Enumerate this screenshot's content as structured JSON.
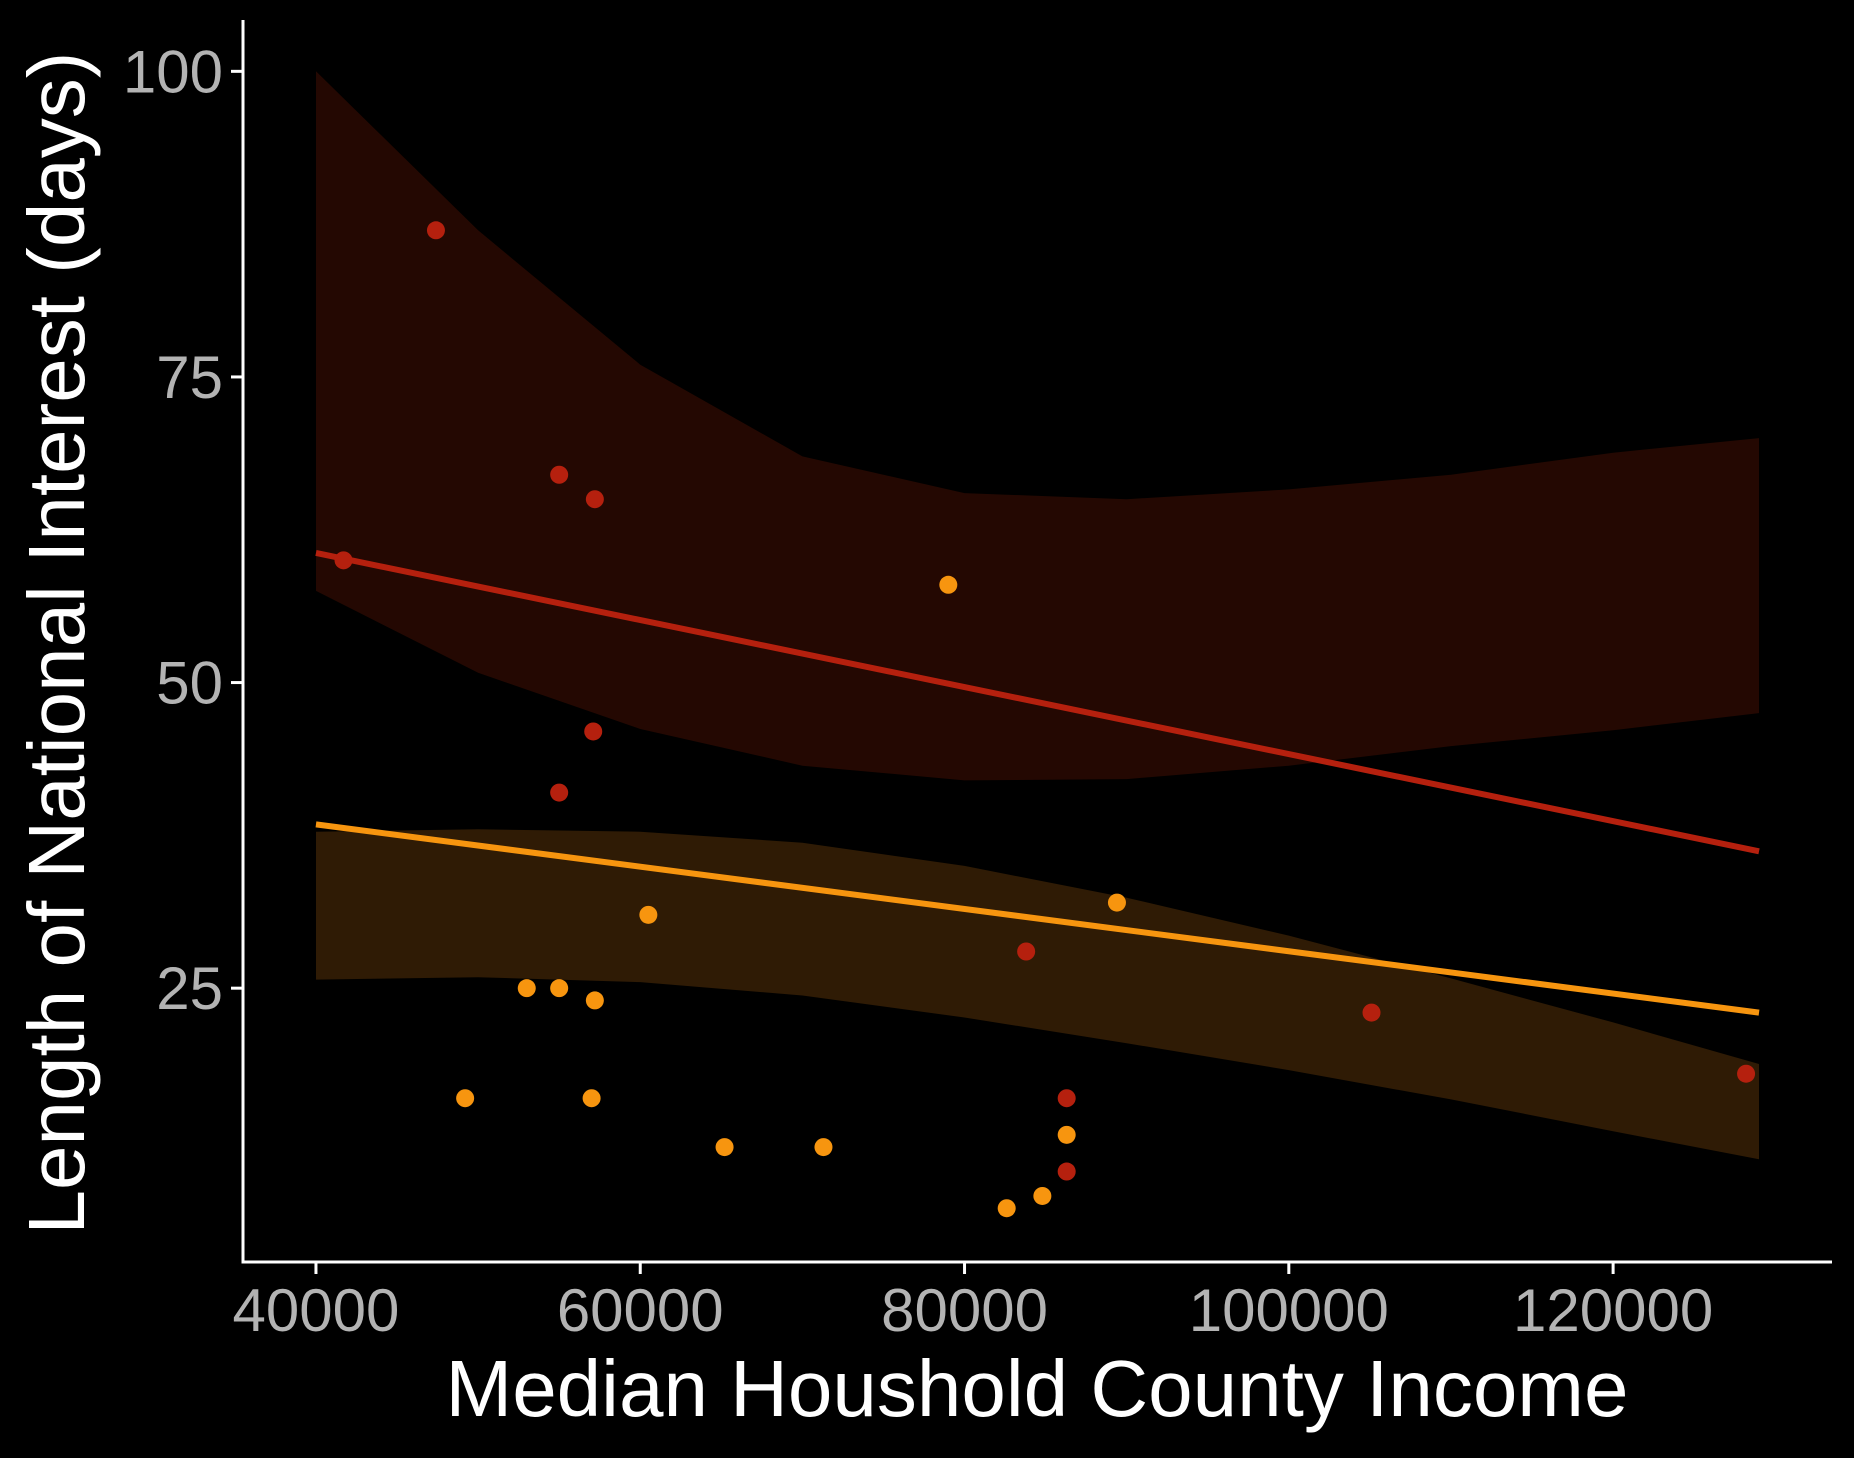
{
  "chart_data": {
    "type": "scatter",
    "title": "",
    "xlabel": "Median Houshold County Income",
    "ylabel": "Length of National Interest (days)",
    "xlim": [
      35500,
      133500
    ],
    "ylim": [
      2.6,
      104.2
    ],
    "x_ticks": [
      40000,
      60000,
      80000,
      100000,
      120000
    ],
    "x_tick_labels": [
      "40000",
      "60000",
      "80000",
      "100000",
      "120000"
    ],
    "y_ticks": [
      25,
      50,
      75,
      100
    ],
    "y_tick_labels": [
      "25",
      "50",
      "75",
      "100"
    ],
    "grid": false,
    "legend": "none",
    "background": "#000000",
    "series": [
      {
        "color": "#b5200e",
        "band_color": "#2e0a02",
        "points": [
          [
            41700,
            60
          ],
          [
            47400,
            87
          ],
          [
            55000,
            67
          ],
          [
            57200,
            65
          ],
          [
            57100,
            46
          ],
          [
            55000,
            41
          ],
          [
            83800,
            28
          ],
          [
            86300,
            16
          ],
          [
            86300,
            10
          ],
          [
            105100,
            23
          ],
          [
            128200,
            18
          ]
        ],
        "fit": {
          "x0": 40000,
          "y0": 60.6,
          "x1": 129000,
          "y1": 36.2
        },
        "band": {
          "x": [
            40000,
            50000,
            60000,
            70000,
            80000,
            90000,
            100000,
            110000,
            120000,
            129000
          ],
          "lower": [
            57.5,
            50.8,
            46.2,
            43.2,
            42.0,
            42.1,
            43.2,
            44.8,
            46.1,
            47.5
          ],
          "upper": [
            100.0,
            87.0,
            76.0,
            68.5,
            65.5,
            65.0,
            65.8,
            67.0,
            68.8,
            70.0
          ]
        }
      },
      {
        "color": "#f7950f",
        "band_color": "#3c2207",
        "points": [
          [
            49200,
            16
          ],
          [
            53000,
            25
          ],
          [
            55000,
            25
          ],
          [
            57200,
            24
          ],
          [
            57000,
            16
          ],
          [
            60500,
            31
          ],
          [
            65200,
            12
          ],
          [
            71300,
            12
          ],
          [
            79000,
            58
          ],
          [
            82600,
            7
          ],
          [
            84800,
            8
          ],
          [
            86300,
            13
          ],
          [
            89400,
            32
          ]
        ],
        "fit": {
          "x0": 40000,
          "y0": 38.4,
          "x1": 129000,
          "y1": 23.0
        },
        "band": {
          "x": [
            40000,
            50000,
            60000,
            70000,
            80000,
            90000,
            100000,
            110000,
            120000,
            129000
          ],
          "lower": [
            25.7,
            25.9,
            25.5,
            24.4,
            22.6,
            20.5,
            18.3,
            15.9,
            13.3,
            11.0
          ],
          "upper": [
            37.8,
            38.0,
            37.8,
            36.9,
            35.0,
            32.4,
            29.3,
            25.8,
            22.2,
            18.8
          ]
        }
      }
    ]
  }
}
